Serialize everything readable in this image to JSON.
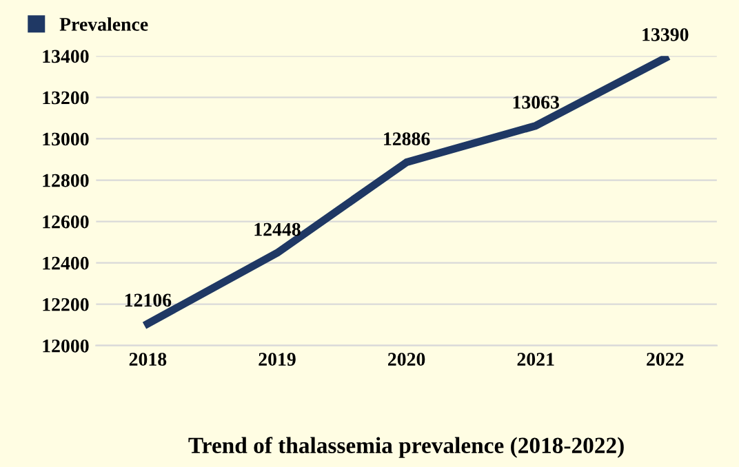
{
  "chart_data": {
    "type": "line",
    "title": "Trend of thalassemia prevalence (2018-2022)",
    "categories": [
      "2018",
      "2019",
      "2020",
      "2021",
      "2022"
    ],
    "series": [
      {
        "name": "Prevalence",
        "color": "#1f3864",
        "values": [
          12106,
          12448,
          12886,
          13063,
          13390
        ]
      }
    ],
    "ylim": [
      12000,
      13400
    ],
    "yticks": [
      12000,
      12200,
      12400,
      12600,
      12800,
      13000,
      13200,
      13400
    ],
    "grid": "y",
    "legend": "top left",
    "data_labels": true,
    "marker": "none",
    "line_style": "solid"
  }
}
